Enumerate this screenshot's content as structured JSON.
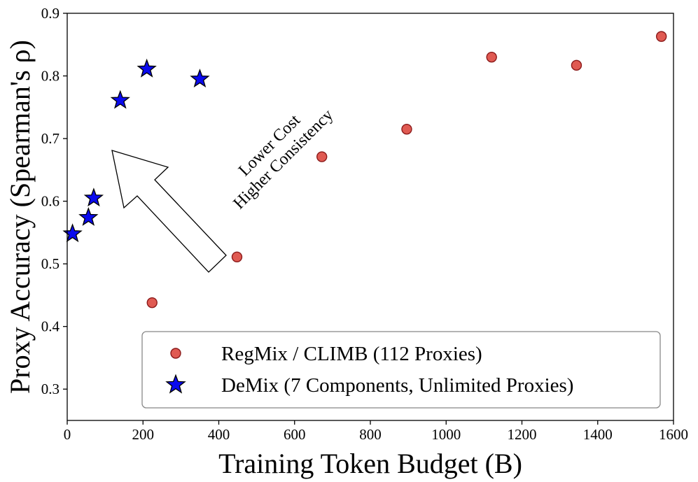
{
  "chart_data": {
    "type": "scatter",
    "xlabel": "Training Token Budget (B)",
    "ylabel": "Proxy Accuracy (Spearman's ρ)",
    "xlim": [
      0,
      1600
    ],
    "ylim": [
      0.25,
      0.9
    ],
    "xticks": [
      "0",
      "200",
      "400",
      "600",
      "800",
      "1000",
      "1200",
      "1400",
      "1600"
    ],
    "yticks": [
      "0.3",
      "0.4",
      "0.5",
      "0.6",
      "0.7",
      "0.8",
      "0.9"
    ],
    "grid": false,
    "legend_position": "lower-right",
    "series": [
      {
        "name": "RegMix / CLIMB (112 Proxies)",
        "marker": "circle",
        "color": "#e05a52",
        "edge_color": "#8b1a1a",
        "points": [
          {
            "x": 224,
            "y": 0.438
          },
          {
            "x": 448,
            "y": 0.511
          },
          {
            "x": 672,
            "y": 0.671
          },
          {
            "x": 896,
            "y": 0.715
          },
          {
            "x": 1120,
            "y": 0.83
          },
          {
            "x": 1344,
            "y": 0.817
          },
          {
            "x": 1568,
            "y": 0.863
          }
        ]
      },
      {
        "name": "DeMix (7 Components, Unlimited Proxies)",
        "marker": "star",
        "color": "#0a0aee",
        "edge_color": "#000000",
        "points": [
          {
            "x": 14,
            "y": 0.548
          },
          {
            "x": 56,
            "y": 0.574
          },
          {
            "x": 70,
            "y": 0.605
          },
          {
            "x": 140,
            "y": 0.761
          },
          {
            "x": 210,
            "y": 0.811
          },
          {
            "x": 350,
            "y": 0.795
          }
        ]
      }
    ],
    "annotations": [
      "Lower Cost",
      "Higher Consistency"
    ]
  }
}
